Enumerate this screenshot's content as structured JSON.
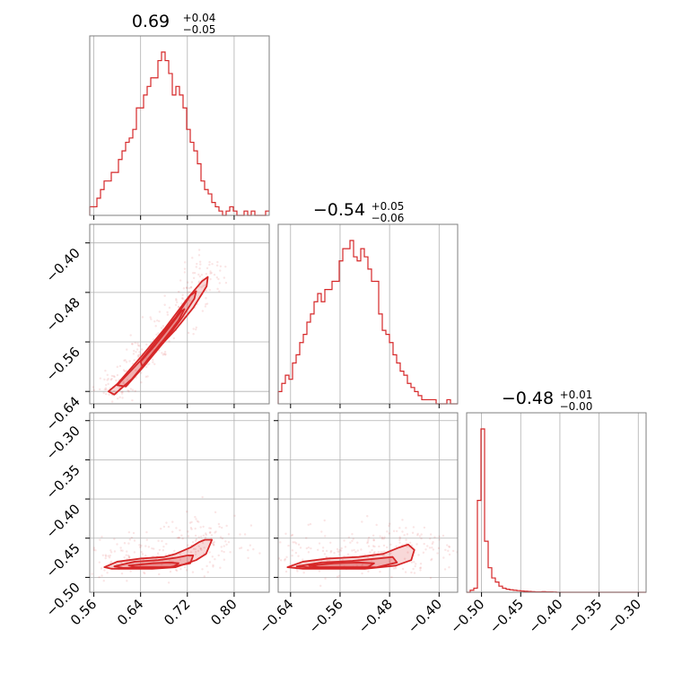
{
  "chart_data": {
    "type": "corner",
    "color": "#d62728",
    "parameters": [
      {
        "id": "p0",
        "summary": {
          "median": "0.69",
          "plus": "+0.04",
          "minus": "−0.05"
        },
        "range": [
          0.553,
          0.86
        ],
        "ticks": [
          0.56,
          0.64,
          0.72,
          0.8
        ],
        "tick_labels": [
          "0.56",
          "0.64",
          "0.72",
          "0.80"
        ],
        "hist": {
          "bin_start": 0.553,
          "bin_width": 0.00614,
          "counts": [
            2,
            2,
            4,
            6,
            8,
            8,
            10,
            10,
            13,
            15,
            17,
            18,
            20,
            25,
            25,
            28,
            30,
            32,
            32,
            36,
            38,
            36,
            33,
            28,
            30,
            28,
            25,
            20,
            17,
            15,
            12,
            8,
            6,
            5,
            3,
            2,
            1,
            0,
            1,
            2,
            1,
            0,
            0,
            1,
            0,
            1,
            0,
            0,
            0,
            1
          ]
        }
      },
      {
        "id": "p1",
        "summary": {
          "median": "−0.54",
          "plus": "+0.05",
          "minus": "−0.06"
        },
        "range": [
          -0.66,
          -0.37
        ],
        "ticks": [
          -0.64,
          -0.56,
          -0.48,
          -0.4
        ],
        "tick_labels": [
          "−0.64",
          "−0.56",
          "−0.48",
          "−0.40"
        ],
        "hist": {
          "bin_start": -0.66,
          "bin_width": 0.0058,
          "counts": [
            3,
            5,
            7,
            6,
            10,
            12,
            15,
            17,
            20,
            22,
            25,
            27,
            25,
            28,
            28,
            30,
            30,
            35,
            38,
            38,
            40,
            36,
            35,
            38,
            36,
            33,
            30,
            30,
            22,
            18,
            17,
            15,
            12,
            10,
            8,
            7,
            5,
            4,
            3,
            2,
            1,
            1,
            1,
            1,
            0,
            0,
            0,
            1,
            0,
            0
          ]
        }
      },
      {
        "id": "p2",
        "summary": {
          "median": "−0.48",
          "plus": "+0.01",
          "minus": "−0.00"
        },
        "range": [
          -0.519,
          -0.29
        ],
        "ticks": [
          -0.5,
          -0.45,
          -0.4,
          -0.35,
          -0.3
        ],
        "tick_labels": [
          "−0.50",
          "−0.45",
          "−0.40",
          "−0.35",
          "−0.30"
        ],
        "hist": {
          "bin_start": -0.519,
          "bin_width": 0.00458,
          "counts": [
            0,
            1,
            2,
            45,
            80,
            25,
            12,
            7,
            5,
            3,
            2,
            1.5,
            1.2,
            1,
            0.8,
            0.6,
            0.5,
            0.4,
            0.3,
            0.2,
            0.2,
            0.3,
            0.2,
            0.2,
            0.1,
            0,
            0,
            0,
            0,
            0,
            0,
            0,
            0,
            0,
            0,
            0,
            0,
            0,
            0,
            0,
            0,
            0,
            0,
            0,
            0,
            0,
            0,
            0,
            0,
            0
          ]
        }
      }
    ],
    "pairs": [
      {
        "x": "p0",
        "y": "p1",
        "center": [
          0.655,
          -0.55
        ],
        "slope": 1.07,
        "half_length": 0.1,
        "tilt": 0.012,
        "width": 0.01,
        "levels": [
          [
            [
              0.585,
              -0.64
            ],
            [
              0.6,
              -0.628
            ],
            [
              0.64,
              -0.585
            ],
            [
              0.68,
              -0.54
            ],
            [
              0.72,
              -0.49
            ],
            [
              0.745,
              -0.462
            ],
            [
              0.755,
              -0.455
            ],
            [
              0.753,
              -0.47
            ],
            [
              0.73,
              -0.505
            ],
            [
              0.7,
              -0.54
            ],
            [
              0.66,
              -0.58
            ],
            [
              0.625,
              -0.62
            ],
            [
              0.595,
              -0.645
            ]
          ],
          [
            [
              0.6,
              -0.63
            ],
            [
              0.64,
              -0.59
            ],
            [
              0.67,
              -0.555
            ],
            [
              0.7,
              -0.52
            ],
            [
              0.725,
              -0.485
            ],
            [
              0.735,
              -0.478
            ],
            [
              0.732,
              -0.49
            ],
            [
              0.71,
              -0.522
            ],
            [
              0.68,
              -0.56
            ],
            [
              0.645,
              -0.6
            ],
            [
              0.615,
              -0.632
            ]
          ],
          [
            [
              0.64,
              -0.592
            ],
            [
              0.665,
              -0.565
            ],
            [
              0.69,
              -0.535
            ],
            [
              0.71,
              -0.51
            ],
            [
              0.715,
              -0.507
            ],
            [
              0.705,
              -0.525
            ],
            [
              0.68,
              -0.556
            ],
            [
              0.655,
              -0.585
            ],
            [
              0.643,
              -0.6
            ]
          ]
        ],
        "scatter_spread": [
          0.016,
          0.018
        ]
      },
      {
        "x": "p0",
        "y": "p2",
        "levels": [
          [
            [
              0.578,
              -0.487
            ],
            [
              0.6,
              -0.48
            ],
            [
              0.64,
              -0.476
            ],
            [
              0.68,
              -0.474
            ],
            [
              0.7,
              -0.47
            ],
            [
              0.725,
              -0.462
            ],
            [
              0.74,
              -0.455
            ],
            [
              0.75,
              -0.452
            ],
            [
              0.762,
              -0.452
            ],
            [
              0.752,
              -0.47
            ],
            [
              0.735,
              -0.478
            ],
            [
              0.7,
              -0.487
            ],
            [
              0.66,
              -0.489
            ],
            [
              0.62,
              -0.489
            ],
            [
              0.59,
              -0.489
            ]
          ],
          [
            [
              0.595,
              -0.486
            ],
            [
              0.63,
              -0.48
            ],
            [
              0.67,
              -0.478
            ],
            [
              0.7,
              -0.475
            ],
            [
              0.72,
              -0.472
            ],
            [
              0.73,
              -0.472
            ],
            [
              0.725,
              -0.482
            ],
            [
              0.69,
              -0.487
            ],
            [
              0.65,
              -0.488
            ],
            [
              0.61,
              -0.488
            ]
          ],
          [
            [
              0.62,
              -0.485
            ],
            [
              0.66,
              -0.482
            ],
            [
              0.69,
              -0.481
            ],
            [
              0.705,
              -0.482
            ],
            [
              0.695,
              -0.487
            ],
            [
              0.66,
              -0.487
            ],
            [
              0.63,
              -0.487
            ]
          ]
        ],
        "scatter_spread": [
          0.05,
          0.012
        ]
      },
      {
        "x": "p1",
        "y": "p2",
        "levels": [
          [
            [
              -0.645,
              -0.487
            ],
            [
              -0.62,
              -0.48
            ],
            [
              -0.58,
              -0.476
            ],
            [
              -0.53,
              -0.474
            ],
            [
              -0.49,
              -0.47
            ],
            [
              -0.465,
              -0.462
            ],
            [
              -0.45,
              -0.458
            ],
            [
              -0.44,
              -0.465
            ],
            [
              -0.445,
              -0.478
            ],
            [
              -0.47,
              -0.485
            ],
            [
              -0.52,
              -0.489
            ],
            [
              -0.57,
              -0.489
            ],
            [
              -0.62,
              -0.489
            ]
          ],
          [
            [
              -0.63,
              -0.486
            ],
            [
              -0.59,
              -0.481
            ],
            [
              -0.54,
              -0.479
            ],
            [
              -0.5,
              -0.476
            ],
            [
              -0.475,
              -0.474
            ],
            [
              -0.468,
              -0.481
            ],
            [
              -0.5,
              -0.487
            ],
            [
              -0.55,
              -0.488
            ],
            [
              -0.6,
              -0.488
            ]
          ],
          [
            [
              -0.61,
              -0.485
            ],
            [
              -0.57,
              -0.482
            ],
            [
              -0.53,
              -0.481
            ],
            [
              -0.505,
              -0.482
            ],
            [
              -0.515,
              -0.487
            ],
            [
              -0.56,
              -0.487
            ],
            [
              -0.595,
              -0.487
            ]
          ]
        ],
        "scatter_spread": [
          0.05,
          0.012
        ]
      }
    ]
  }
}
